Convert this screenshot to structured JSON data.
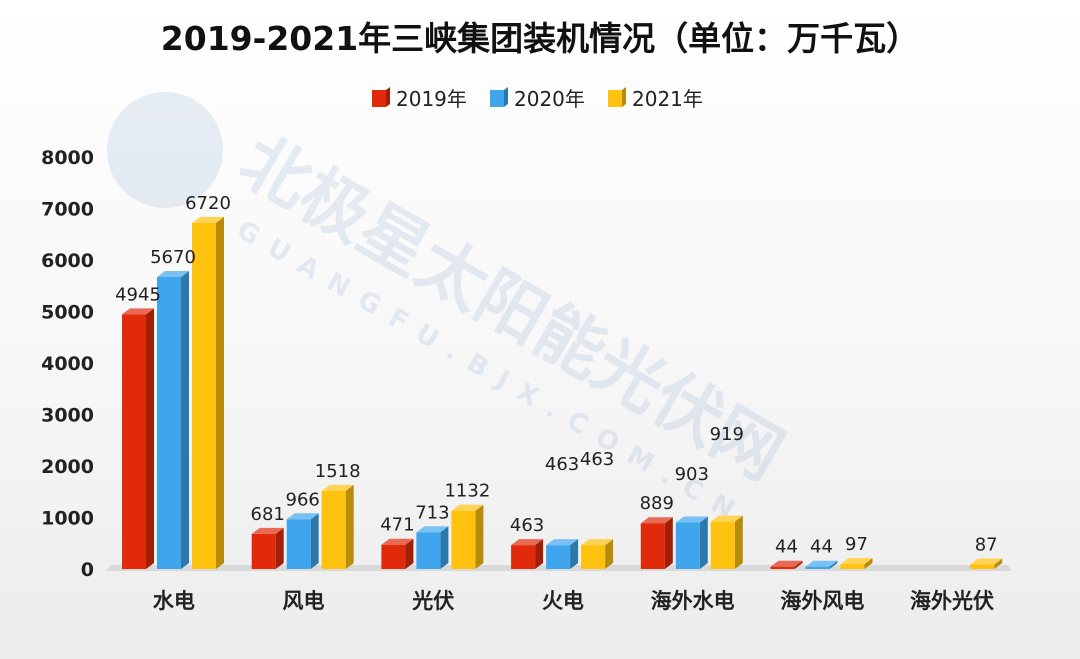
{
  "chart_data": {
    "type": "bar",
    "title": "2019-2021年三峡集团装机情况（单位：万千瓦）",
    "categories": [
      "水电",
      "风电",
      "光伏",
      "火电",
      "海外水电",
      "海外风电",
      "海外光伏"
    ],
    "series": [
      {
        "name": "2019年",
        "color": "#e02a0a",
        "values": [
          4945,
          681,
          471,
          463,
          889,
          44,
          null
        ],
        "labels": [
          "4945",
          "681",
          "471",
          "463",
          "889",
          "44",
          ""
        ]
      },
      {
        "name": "2020年",
        "color": "#3fa6ee",
        "values": [
          5670,
          966,
          713,
          463,
          903,
          44,
          null
        ],
        "labels": [
          "5670",
          "966",
          "713",
          "463",
          "903",
          "44",
          ""
        ]
      },
      {
        "name": "2021年",
        "color": "#ffc20e",
        "values": [
          6720,
          1518,
          1132,
          463,
          919,
          97,
          87
        ],
        "labels": [
          "6720",
          "1518",
          "1132",
          "463",
          "919",
          "97",
          "87"
        ]
      }
    ],
    "y_ticks": [
      "0",
      "1000",
      "2000",
      "3000",
      "4000",
      "5000",
      "6000",
      "7000",
      "8000"
    ],
    "ylim": [
      0,
      8000
    ],
    "legend_position": "top-center",
    "grid": false
  },
  "watermark": {
    "text": "北极星太阳能光伏网",
    "subtext": "GUANGFU.BJX.COM.CN"
  }
}
